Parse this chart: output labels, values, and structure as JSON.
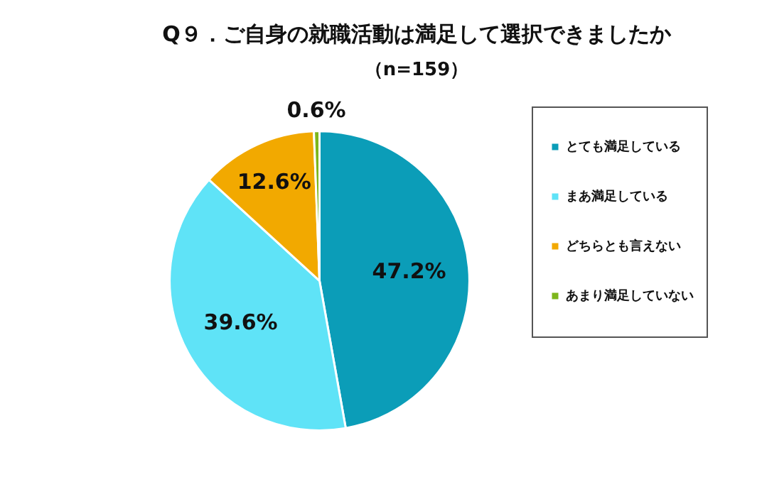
{
  "chart_data": {
    "type": "pie",
    "title": "Q９．ご自身の就職活動は満足して選択できましたか",
    "subtitle": "（n=159）",
    "categories": [
      "とても満足している",
      "まあ満足している",
      "どちらとも言えない",
      "あまり満足していない"
    ],
    "values": [
      47.2,
      39.6,
      12.6,
      0.6
    ],
    "colors": [
      "#0b9db8",
      "#5fe3f7",
      "#f2a900",
      "#7db61c"
    ],
    "legend": "right",
    "value_labels": [
      "47.2%",
      "39.6%",
      "12.6%",
      "0.6%"
    ]
  }
}
